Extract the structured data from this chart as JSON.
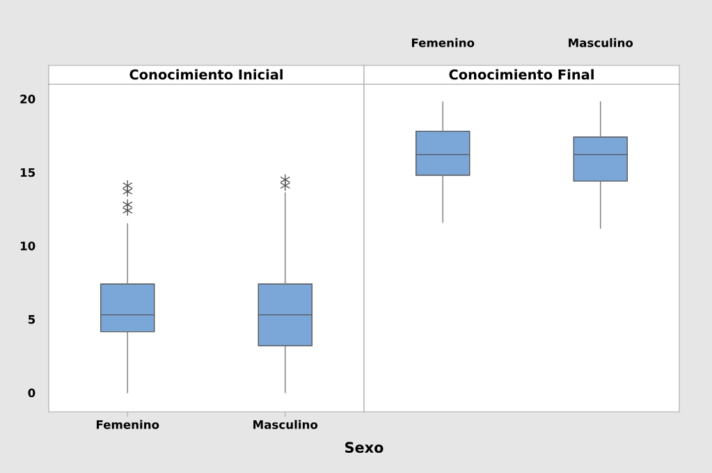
{
  "chart_data": [
    {
      "type": "box",
      "title": "Conocimiento Inicial",
      "xlabel": "Sexo",
      "categories": [
        "Femenino",
        "Masculino"
      ],
      "color": "#7ba7d8",
      "ylim": [
        -1.3,
        21
      ],
      "yticks": [
        0,
        5,
        10,
        15,
        20
      ],
      "grid": false,
      "marker": "cross",
      "boxes": [
        {
          "low": 0,
          "q1": 4.15,
          "median": 5.3,
          "q3": 7.4,
          "high": 11.5,
          "outliers": [
            14.1,
            13.7,
            12.8,
            12.4
          ]
        },
        {
          "low": 0,
          "q1": 3.2,
          "median": 5.3,
          "q3": 7.4,
          "high": 13.6,
          "outliers": [
            14.5,
            14.1
          ]
        }
      ]
    },
    {
      "type": "box",
      "title": "Conocimiento Final",
      "categories": [
        "Femenino",
        "Masculino"
      ],
      "color": "#7ba7d8",
      "ylim": [
        -1.3,
        21
      ],
      "yticks": [
        0,
        5,
        10,
        15,
        20
      ],
      "grid": false,
      "tick_labels": "x",
      "boxes": [
        {
          "low": 11.6,
          "q1": 14.8,
          "median": 16.2,
          "q3": 17.8,
          "high": 19.8
        },
        {
          "low": 11.2,
          "q1": 14.4,
          "median": 16.2,
          "q3": 17.4,
          "high": 19.8
        }
      ]
    }
  ]
}
